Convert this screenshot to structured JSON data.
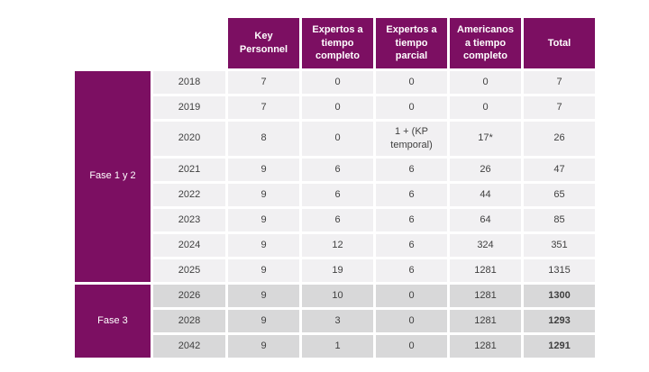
{
  "colors": {
    "purple": "#7c0f62",
    "row_light": "#f1f0f2",
    "row_gray": "#d8d8d9",
    "text": "#3f3f3f",
    "header_text": "#ffffff",
    "background": "#ffffff"
  },
  "table": {
    "columns": [
      "Key Personnel",
      "Expertos a tiempo completo",
      "Expertos a tiempo parcial",
      "Americanos a tiempo completo",
      "Total"
    ],
    "sections": [
      {
        "label": "Fase 1 y 2",
        "rows": [
          {
            "year": "2018",
            "values": [
              "7",
              "0",
              "0",
              "0",
              "7"
            ]
          },
          {
            "year": "2019",
            "values": [
              "7",
              "0",
              "0",
              "0",
              "7"
            ]
          },
          {
            "year": "2020",
            "values": [
              "8",
              "0",
              "1 + (KP temporal)",
              "17*",
              "26"
            ]
          },
          {
            "year": "2021",
            "values": [
              "9",
              "6",
              "6",
              "26",
              "47"
            ]
          },
          {
            "year": "2022",
            "values": [
              "9",
              "6",
              "6",
              "44",
              "65"
            ]
          },
          {
            "year": "2023",
            "values": [
              "9",
              "6",
              "6",
              "64",
              "85"
            ]
          },
          {
            "year": "2024",
            "values": [
              "9",
              "12",
              "6",
              "324",
              "351"
            ]
          },
          {
            "year": "2025",
            "values": [
              "9",
              "19",
              "6",
              "1281",
              "1315"
            ]
          }
        ]
      },
      {
        "label": "Fase 3",
        "rows": [
          {
            "year": "2026",
            "values": [
              "9",
              "10",
              "0",
              "1281",
              "1300"
            ]
          },
          {
            "year": "2028",
            "values": [
              "9",
              "3",
              "0",
              "1281",
              "1293"
            ]
          },
          {
            "year": "2042",
            "values": [
              "9",
              "1",
              "0",
              "1281",
              "1291"
            ]
          }
        ]
      }
    ]
  }
}
